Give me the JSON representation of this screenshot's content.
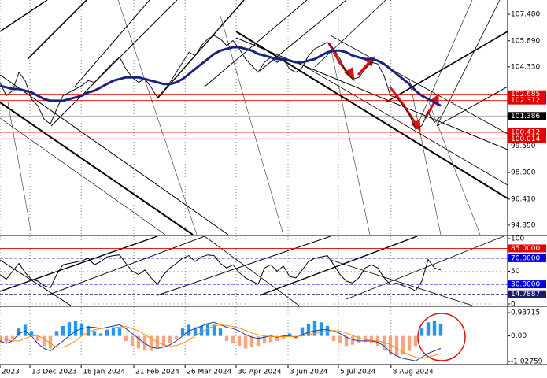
{
  "chart_data": [
    {
      "type": "line",
      "x": [
        0,
        1,
        2,
        3,
        4,
        5,
        6,
        7,
        8,
        9,
        10,
        11,
        12,
        13,
        14,
        15,
        16,
        17,
        18,
        19,
        20,
        21,
        22,
        23,
        24,
        25,
        26,
        27,
        28,
        29,
        30,
        31,
        32,
        33,
        34,
        35,
        36,
        37,
        38,
        39,
        40,
        41,
        42,
        43,
        44,
        45,
        46,
        47,
        48,
        49,
        50,
        51,
        52,
        53,
        54,
        55,
        56,
        57,
        58,
        59,
        60,
        61,
        62,
        63,
        64,
        65,
        66,
        67,
        68,
        69,
        70
      ],
      "xlim": [
        0,
        80.625
      ],
      "ylim": [
        94.28,
        108.33
      ],
      "yticks": [
        {
          "value": 107.48,
          "label": "107.480"
        },
        {
          "value": 105.89,
          "label": "105.890"
        },
        {
          "value": 104.33,
          "label": "104.330"
        },
        {
          "value": 99.59,
          "label": "99.590"
        },
        {
          "value": 98,
          "label": "98.000"
        },
        {
          "value": 96.41,
          "label": "96.410"
        },
        {
          "value": 94.85,
          "label": "94.850"
        }
      ],
      "series": [
        {
          "color": "#111111",
          "values": [
            103.4,
            102.6,
            102.9,
            104.0,
            103.5,
            102.4,
            102.0,
            101.2,
            100.9,
            101.8,
            102.6,
            102.8,
            103.0,
            103.2,
            103.5,
            103.4,
            103.8,
            104.2,
            104.6,
            104.9,
            104.2,
            103.7,
            103.4,
            103.6,
            103.1,
            102.5,
            102.9,
            103.4,
            104.0,
            104.6,
            105.2,
            105.0,
            105.6,
            106.0,
            106.2,
            106.0,
            105.6,
            105.9,
            105.4,
            104.8,
            104.4,
            104.0,
            104.6,
            104.9,
            104.6,
            104.8,
            104.2,
            104.0,
            104.3,
            105.0,
            105.4,
            105.6,
            105.8,
            105.4,
            104.8,
            104.0,
            103.6,
            103.7,
            104.2,
            104.6,
            104.5,
            103.8,
            102.6,
            102.5,
            102.0,
            101.5,
            100.6,
            100.8,
            101.6,
            101.0,
            101.386
          ]
        },
        {
          "color": "#1a237e",
          "values": [
            103.2,
            103.1,
            103.0,
            103.0,
            102.9,
            102.8,
            102.6,
            102.4,
            102.3,
            102.3,
            102.3,
            102.4,
            102.5,
            102.6,
            102.8,
            102.9,
            103.1,
            103.3,
            103.5,
            103.6,
            103.7,
            103.7,
            103.7,
            103.6,
            103.5,
            103.4,
            103.3,
            103.3,
            103.4,
            103.6,
            103.9,
            104.2,
            104.5,
            104.8,
            105.1,
            105.3,
            105.4,
            105.5,
            105.5,
            105.4,
            105.3,
            105.1,
            105.0,
            104.9,
            104.8,
            104.8,
            104.7,
            104.6,
            104.6,
            104.7,
            104.8,
            105.0,
            105.2,
            105.3,
            105.3,
            105.2,
            105.0,
            104.9,
            104.8,
            104.8,
            104.7,
            104.5,
            104.2,
            103.9,
            103.6,
            103.3,
            102.9,
            102.6,
            102.4,
            102.2,
            102.0
          ]
        }
      ],
      "levels": [
        {
          "value": 102.685,
          "color": "#e00000"
        },
        {
          "value": 102.312,
          "color": "#e00000"
        },
        {
          "value": 101.386,
          "color": "#000000"
        },
        {
          "value": 100.412,
          "color": "#e00000"
        },
        {
          "value": 100.014,
          "color": "#e00000"
        }
      ]
    },
    {
      "type": "line",
      "x": [
        0,
        1,
        2,
        3,
        4,
        5,
        6,
        7,
        8,
        9,
        10,
        11,
        12,
        13,
        14,
        15,
        16,
        17,
        18,
        19,
        20,
        21,
        22,
        23,
        24,
        25,
        26,
        27,
        28,
        29,
        30,
        31,
        32,
        33,
        34,
        35,
        36,
        37,
        38,
        39,
        40,
        41,
        42,
        43,
        44,
        45,
        46,
        47,
        48,
        49,
        50,
        51,
        52,
        53,
        54,
        55,
        56,
        57,
        58,
        59,
        60,
        61,
        62,
        63,
        64,
        65,
        66,
        67,
        68,
        69,
        70
      ],
      "xlim": [
        0,
        80.625
      ],
      "ylim": [
        -2.4,
        103.6
      ],
      "yticks": [
        100,
        50,
        0
      ],
      "series": [
        {
          "color": "#000000",
          "values": [
            45,
            38,
            50,
            62,
            48,
            38,
            35,
            28,
            25,
            45,
            60,
            62,
            64,
            66,
            70,
            60,
            65,
            72,
            74,
            75,
            62,
            50,
            45,
            52,
            40,
            30,
            45,
            55,
            62,
            70,
            74,
            65,
            72,
            75,
            74,
            62,
            55,
            60,
            48,
            40,
            35,
            30,
            55,
            60,
            50,
            58,
            42,
            40,
            52,
            65,
            70,
            72,
            74,
            60,
            45,
            35,
            32,
            40,
            55,
            60,
            55,
            40,
            30,
            32,
            28,
            25,
            20,
            35,
            68,
            55,
            52
          ]
        }
      ],
      "levels": [
        {
          "value": 85,
          "label": "85.0000",
          "color": "#e00000"
        },
        {
          "value": 70,
          "label": "70.0000",
          "color": "#0000e0"
        },
        {
          "value": 30,
          "label": "30.0000",
          "color": "#0000e0"
        },
        {
          "value": 14.7887,
          "color": "#1a1a6e"
        }
      ]
    },
    {
      "type": "macd",
      "x": [
        0,
        1,
        2,
        3,
        4,
        5,
        6,
        7,
        8,
        9,
        10,
        11,
        12,
        13,
        14,
        15,
        16,
        17,
        18,
        19,
        20,
        21,
        22,
        23,
        24,
        25,
        26,
        27,
        28,
        29,
        30,
        31,
        32,
        33,
        34,
        35,
        36,
        37,
        38,
        39,
        40,
        41,
        42,
        43,
        44,
        45,
        46,
        47,
        48,
        49,
        50,
        51,
        52,
        53,
        54,
        55,
        56,
        57,
        58,
        59,
        60,
        61,
        62,
        63,
        64,
        65,
        66,
        67,
        68,
        69,
        70
      ],
      "xlim": [
        0,
        80.625
      ],
      "ylim": [
        -1.12,
        1.16
      ],
      "yticks": [
        0.93715,
        {
          "value": 0,
          "label": "0.00"
        },
        -1.02759
      ],
      "histogram": {
        "pos_color": "#2196f3",
        "neg_color": "#f4a582",
        "values": [
          -0.3,
          -0.25,
          -0.1,
          0.3,
          0.45,
          0.2,
          -0.2,
          -0.4,
          -0.5,
          0.2,
          0.4,
          0.55,
          0.6,
          0.5,
          0.4,
          0.2,
          0.1,
          0.25,
          0.35,
          0.3,
          -0.2,
          -0.4,
          -0.5,
          -0.55,
          -0.6,
          -0.5,
          -0.4,
          -0.3,
          -0.1,
          0.3,
          0.45,
          0.35,
          0.4,
          0.5,
          0.45,
          0.3,
          -0.2,
          -0.3,
          -0.4,
          -0.5,
          -0.45,
          -0.4,
          -0.3,
          -0.25,
          -0.2,
          -0.1,
          0.1,
          -0.1,
          0.35,
          0.5,
          0.6,
          0.55,
          0.4,
          -0.2,
          -0.3,
          -0.4,
          -0.35,
          -0.3,
          -0.25,
          -0.3,
          -0.4,
          -0.55,
          -0.7,
          -0.8,
          -0.75,
          -0.6,
          -0.4,
          0.3,
          0.55,
          0.6,
          0.5
        ]
      },
      "series": [
        {
          "color": "#1a3a9e",
          "values": [
            -0.2,
            -0.3,
            -0.2,
            0.1,
            0.2,
            0.0,
            -0.3,
            -0.5,
            -0.6,
            -0.4,
            -0.2,
            0.0,
            0.2,
            0.3,
            0.35,
            0.35,
            0.3,
            0.35,
            0.4,
            0.45,
            0.3,
            0.1,
            -0.1,
            -0.3,
            -0.45,
            -0.5,
            -0.45,
            -0.35,
            -0.2,
            0.0,
            0.2,
            0.3,
            0.4,
            0.5,
            0.55,
            0.45,
            0.35,
            0.3,
            0.2,
            0.05,
            -0.05,
            -0.1,
            -0.05,
            0.0,
            -0.05,
            0.0,
            0.0,
            -0.05,
            0.05,
            0.15,
            0.2,
            0.25,
            0.25,
            0.2,
            0.1,
            -0.05,
            -0.15,
            -0.2,
            -0.2,
            -0.2,
            -0.25,
            -0.4,
            -0.65,
            -0.8,
            -0.9,
            -0.95,
            -1.0,
            -0.85,
            -0.7,
            -0.6,
            -0.5
          ]
        },
        {
          "color": "#ff8c00",
          "values": [
            -0.1,
            -0.15,
            -0.2,
            -0.2,
            -0.1,
            0.0,
            0.0,
            -0.1,
            -0.3,
            -0.45,
            -0.45,
            -0.35,
            -0.2,
            0.0,
            0.15,
            0.25,
            0.3,
            0.32,
            0.33,
            0.36,
            0.38,
            0.3,
            0.2,
            0.05,
            -0.1,
            -0.25,
            -0.35,
            -0.4,
            -0.38,
            -0.3,
            -0.15,
            0.0,
            0.15,
            0.3,
            0.4,
            0.45,
            0.42,
            0.38,
            0.32,
            0.22,
            0.12,
            0.05,
            0.0,
            -0.02,
            -0.03,
            -0.03,
            -0.02,
            -0.02,
            0.0,
            0.05,
            0.1,
            0.15,
            0.2,
            0.22,
            0.2,
            0.12,
            0.02,
            -0.08,
            -0.15,
            -0.18,
            -0.2,
            -0.25,
            -0.35,
            -0.5,
            -0.65,
            -0.75,
            -0.85,
            -0.9,
            -0.85,
            -0.78,
            -0.7
          ]
        }
      ],
      "xticks": [
        {
          "value": 0,
          "label": "2023"
        },
        {
          "value": 4.75,
          "label": "13 Dec 2023"
        },
        {
          "value": 12.9,
          "label": "18 Jan 2024"
        },
        {
          "value": 21.25,
          "label": "21 Feb 2024"
        },
        {
          "value": 29.4,
          "label": "26 Mar 2024"
        },
        {
          "value": 37.5,
          "label": "30 Apr 2024"
        },
        {
          "value": 45.75,
          "label": "3 Jun 2024"
        },
        {
          "value": 53.75,
          "label": "5 Jul 2024"
        },
        {
          "value": 62.1,
          "label": "8 Aug 2024"
        }
      ]
    }
  ]
}
